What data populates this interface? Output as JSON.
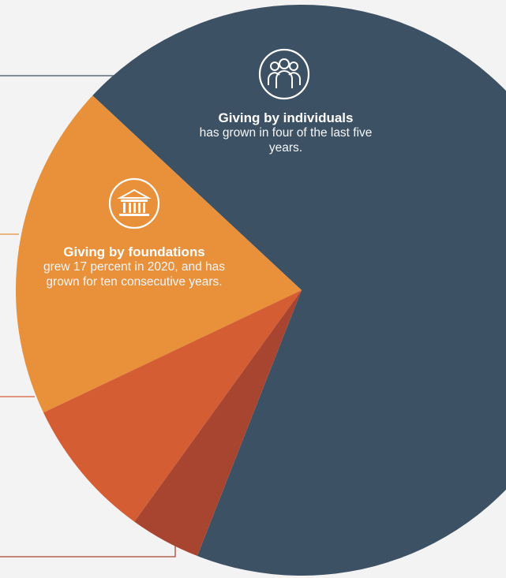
{
  "chart_data": {
    "type": "pie",
    "slices": [
      {
        "name": "individuals",
        "share": 69,
        "color": "#3d5164"
      },
      {
        "name": "foundations",
        "share": 19,
        "color": "#e8913a"
      },
      {
        "name": "other-1",
        "share": 8,
        "color": "#d45d34"
      },
      {
        "name": "other-2",
        "share": 4,
        "color": "#a84530"
      }
    ]
  },
  "annotations": {
    "individuals": {
      "headline": "Giving by individuals",
      "body": "has grown in four of the last five years.",
      "icon": "people-group-icon"
    },
    "foundations": {
      "headline": "Giving by foundations",
      "body": "grew 17 percent in 2020, and has grown for ten consecutive years.",
      "icon": "institution-building-icon"
    }
  },
  "colors": {
    "background": "#f3f3f4",
    "individuals_leader": "#3d5164",
    "foundations_leader": "#e8913a",
    "other1_leader": "#d45d34",
    "other2_leader": "#a84530"
  }
}
